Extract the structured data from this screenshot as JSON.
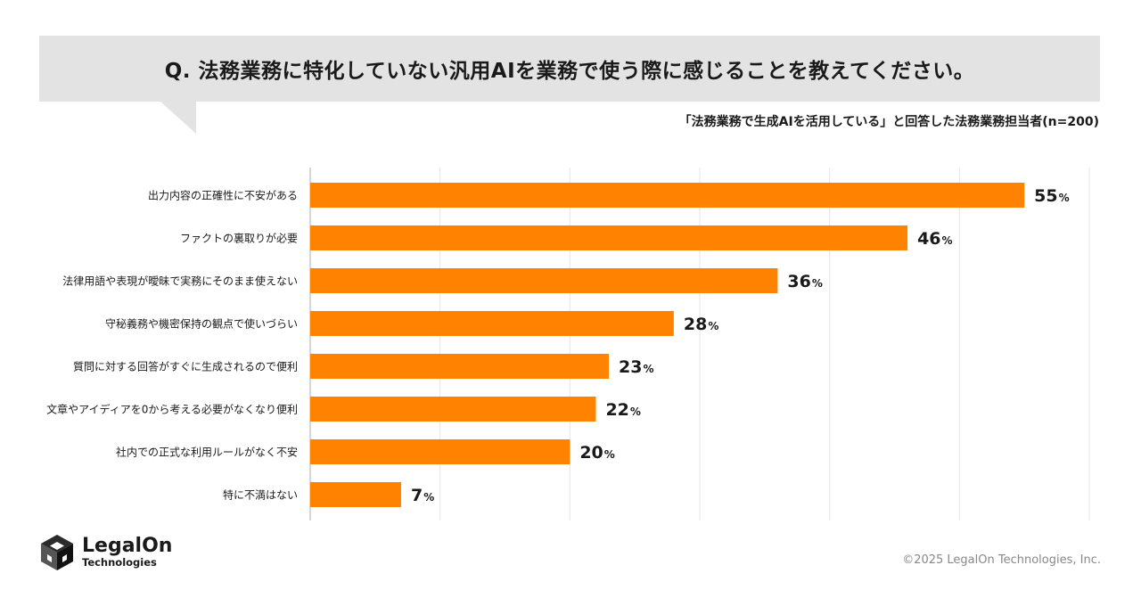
{
  "header": {
    "question": "Q. 法務業務に特化していない汎用AIを業務で使う際に感じることを教えてください。",
    "respondents": "「法務業務で生成AIを活用している」と回答した法務業務担当者(n=200)"
  },
  "chart_data": {
    "type": "bar",
    "orientation": "horizontal",
    "categories": [
      "出力内容の正確性に不安がある",
      "ファクトの裏取りが必要",
      "法律用語や表現が曖昧で実務にそのまま使えない",
      "守秘義務や機密保持の観点で使いづらい",
      "質問に対する回答がすぐに生成されるので便利",
      "文章やアイディアを0から考える必要がなくなり便利",
      "社内での正式な利用ルールがなく不安",
      "特に不満はない"
    ],
    "values": [
      55,
      46,
      36,
      28,
      23,
      22,
      20,
      7
    ],
    "unit": "%",
    "xlim": [
      0,
      60
    ],
    "grid": true,
    "bar_color": "#ff8200"
  },
  "footer": {
    "logo_name": "LegalOn",
    "logo_sub": "Technologies",
    "logo_icon": "legalon-cube-icon",
    "copyright": "©2025 LegalOn Technologies, Inc."
  }
}
